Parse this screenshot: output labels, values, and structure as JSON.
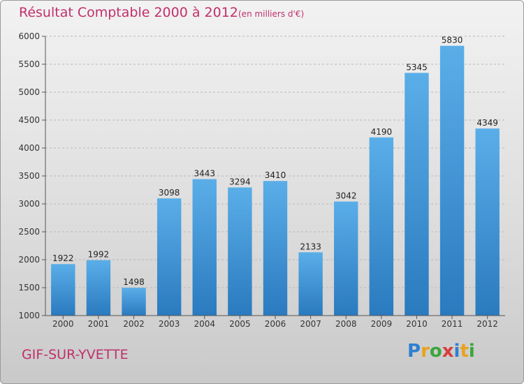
{
  "chart_data": {
    "type": "bar",
    "title": "Résultat Comptable 2000 à 2012",
    "subtitle": "(en milliers d'€)",
    "categories": [
      "2000",
      "2001",
      "2002",
      "2003",
      "2004",
      "2005",
      "2006",
      "2007",
      "2008",
      "2009",
      "2010",
      "2011",
      "2012"
    ],
    "values": [
      1922,
      1992,
      1498,
      3098,
      3443,
      3294,
      3410,
      2133,
      3042,
      4190,
      5345,
      5830,
      4349
    ],
    "ylim": [
      1000,
      6000
    ],
    "yticks": [
      1000,
      1500,
      2000,
      2500,
      3000,
      3500,
      4000,
      4500,
      5000,
      5500,
      6000
    ],
    "xlabel": "",
    "ylabel": "",
    "grid": true,
    "bar_color_top": "#5aaee8",
    "bar_color_bottom": "#2a7abf"
  },
  "footer": {
    "city": "GIF-SUR-YVETTE",
    "logo_letters": [
      "P",
      "r",
      "o",
      "x",
      "i",
      "t",
      "i"
    ],
    "logo_colors": [
      "#2e7fd1",
      "#e8a21e",
      "#3aa63a",
      "#d93c3c",
      "#2e7fd1",
      "#e8a21e",
      "#3aa63a"
    ]
  }
}
